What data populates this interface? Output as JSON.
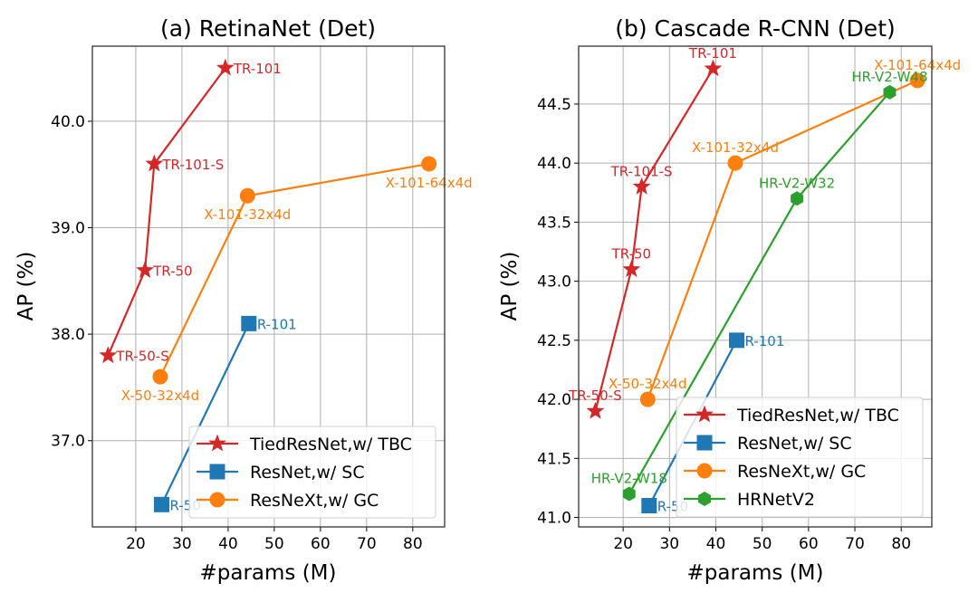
{
  "colors": {
    "tied": "#d62728",
    "resnet": "#1f77b4",
    "resnext": "#ff7f0e",
    "hrnet": "#2ca02c"
  },
  "chart_data": [
    {
      "type": "line",
      "title": "(a) RetinaNet (Det)",
      "xlabel": "#params (M)",
      "ylabel": "AP (%)",
      "xlim": [
        10.6,
        86.9
      ],
      "ylim": [
        36.19,
        40.705
      ],
      "xticks": [
        20,
        30,
        40,
        50,
        60,
        70,
        80
      ],
      "xtick_labels": [
        "20",
        "30",
        "40",
        "50",
        "60",
        "70",
        "80"
      ],
      "yticks": [
        37.0,
        38.0,
        39.0,
        40.0
      ],
      "ytick_labels": [
        "37.0",
        "38.0",
        "39.0",
        "40.0"
      ],
      "grid": true,
      "legend_position": "lower-right",
      "series": [
        {
          "name": "TiedResNet,w/ TBC",
          "color_key": "tied",
          "marker": "star",
          "points": [
            {
              "x": 14.0,
              "y": 37.8,
              "label": "TR-50-S",
              "label_pos": "right"
            },
            {
              "x": 22.0,
              "y": 38.6,
              "label": "TR-50",
              "label_pos": "right"
            },
            {
              "x": 24.0,
              "y": 39.6,
              "label": "TR-101-S",
              "label_pos": "right"
            },
            {
              "x": 39.4,
              "y": 40.5,
              "label": "TR-101",
              "label_pos": "right"
            }
          ]
        },
        {
          "name": "ResNet,w/ SC",
          "color_key": "resnet",
          "marker": "square",
          "points": [
            {
              "x": 25.6,
              "y": 36.4,
              "label": "R-50",
              "label_pos": "right"
            },
            {
              "x": 44.5,
              "y": 38.1,
              "label": "R-101",
              "label_pos": "right"
            }
          ]
        },
        {
          "name": "ResNeXt,w/ GC",
          "color_key": "resnext",
          "marker": "circle",
          "points": [
            {
              "x": 25.3,
              "y": 37.6,
              "label": "X-50-32x4d",
              "label_pos": "below"
            },
            {
              "x": 44.2,
              "y": 39.3,
              "label": "X-101-32x4d",
              "label_pos": "below"
            },
            {
              "x": 83.5,
              "y": 39.6,
              "label": "X-101-64x4d",
              "label_pos": "below"
            }
          ]
        }
      ]
    },
    {
      "type": "line",
      "title": "(b) Cascade R-CNN (Det)",
      "xlabel": "#params (M)",
      "ylabel": "AP (%)",
      "xlim": [
        10.4,
        86.6
      ],
      "ylim": [
        40.92,
        44.99
      ],
      "xticks": [
        20,
        30,
        40,
        50,
        60,
        70,
        80
      ],
      "xtick_labels": [
        "20",
        "30",
        "40",
        "50",
        "60",
        "70",
        "80"
      ],
      "yticks": [
        41.0,
        41.5,
        42.0,
        42.5,
        43.0,
        43.5,
        44.0,
        44.5
      ],
      "ytick_labels": [
        "41.0",
        "41.5",
        "42.0",
        "42.5",
        "43.0",
        "43.5",
        "44.0",
        "44.5"
      ],
      "grid": true,
      "legend_position": "lower-right",
      "series": [
        {
          "name": "TiedResNet,w/ TBC",
          "color_key": "tied",
          "marker": "star",
          "points": [
            {
              "x": 14.0,
              "y": 41.9,
              "label": "TR-50-S",
              "label_pos": "above"
            },
            {
              "x": 21.8,
              "y": 43.1,
              "label": "TR-50",
              "label_pos": "above"
            },
            {
              "x": 24.0,
              "y": 43.8,
              "label": "TR-101-S",
              "label_pos": "above"
            },
            {
              "x": 39.4,
              "y": 44.8,
              "label": "TR-101",
              "label_pos": "above"
            }
          ]
        },
        {
          "name": "ResNet,w/ SC",
          "color_key": "resnet",
          "marker": "square",
          "points": [
            {
              "x": 25.6,
              "y": 41.1,
              "label": "R-50",
              "label_pos": "right"
            },
            {
              "x": 44.5,
              "y": 42.5,
              "label": "R-101",
              "label_pos": "right"
            }
          ]
        },
        {
          "name": "ResNeXt,w/ GC",
          "color_key": "resnext",
          "marker": "circle",
          "points": [
            {
              "x": 25.3,
              "y": 42.0,
              "label": "X-50-32x4d",
              "label_pos": "above"
            },
            {
              "x": 44.2,
              "y": 44.0,
              "label": "X-101-32x4d",
              "label_pos": "above"
            },
            {
              "x": 83.5,
              "y": 44.7,
              "label": "X-101-64x4d",
              "label_pos": "above"
            }
          ]
        },
        {
          "name": "HRNetV2",
          "color_key": "hrnet",
          "marker": "hexagon",
          "points": [
            {
              "x": 21.3,
              "y": 41.2,
              "label": "HR-V2-W18",
              "label_pos": "above"
            },
            {
              "x": 57.5,
              "y": 43.7,
              "label": "HR-V2-W32",
              "label_pos": "above"
            },
            {
              "x": 77.5,
              "y": 44.6,
              "label": "HR-V2-W48",
              "label_pos": "above"
            }
          ]
        }
      ]
    }
  ]
}
